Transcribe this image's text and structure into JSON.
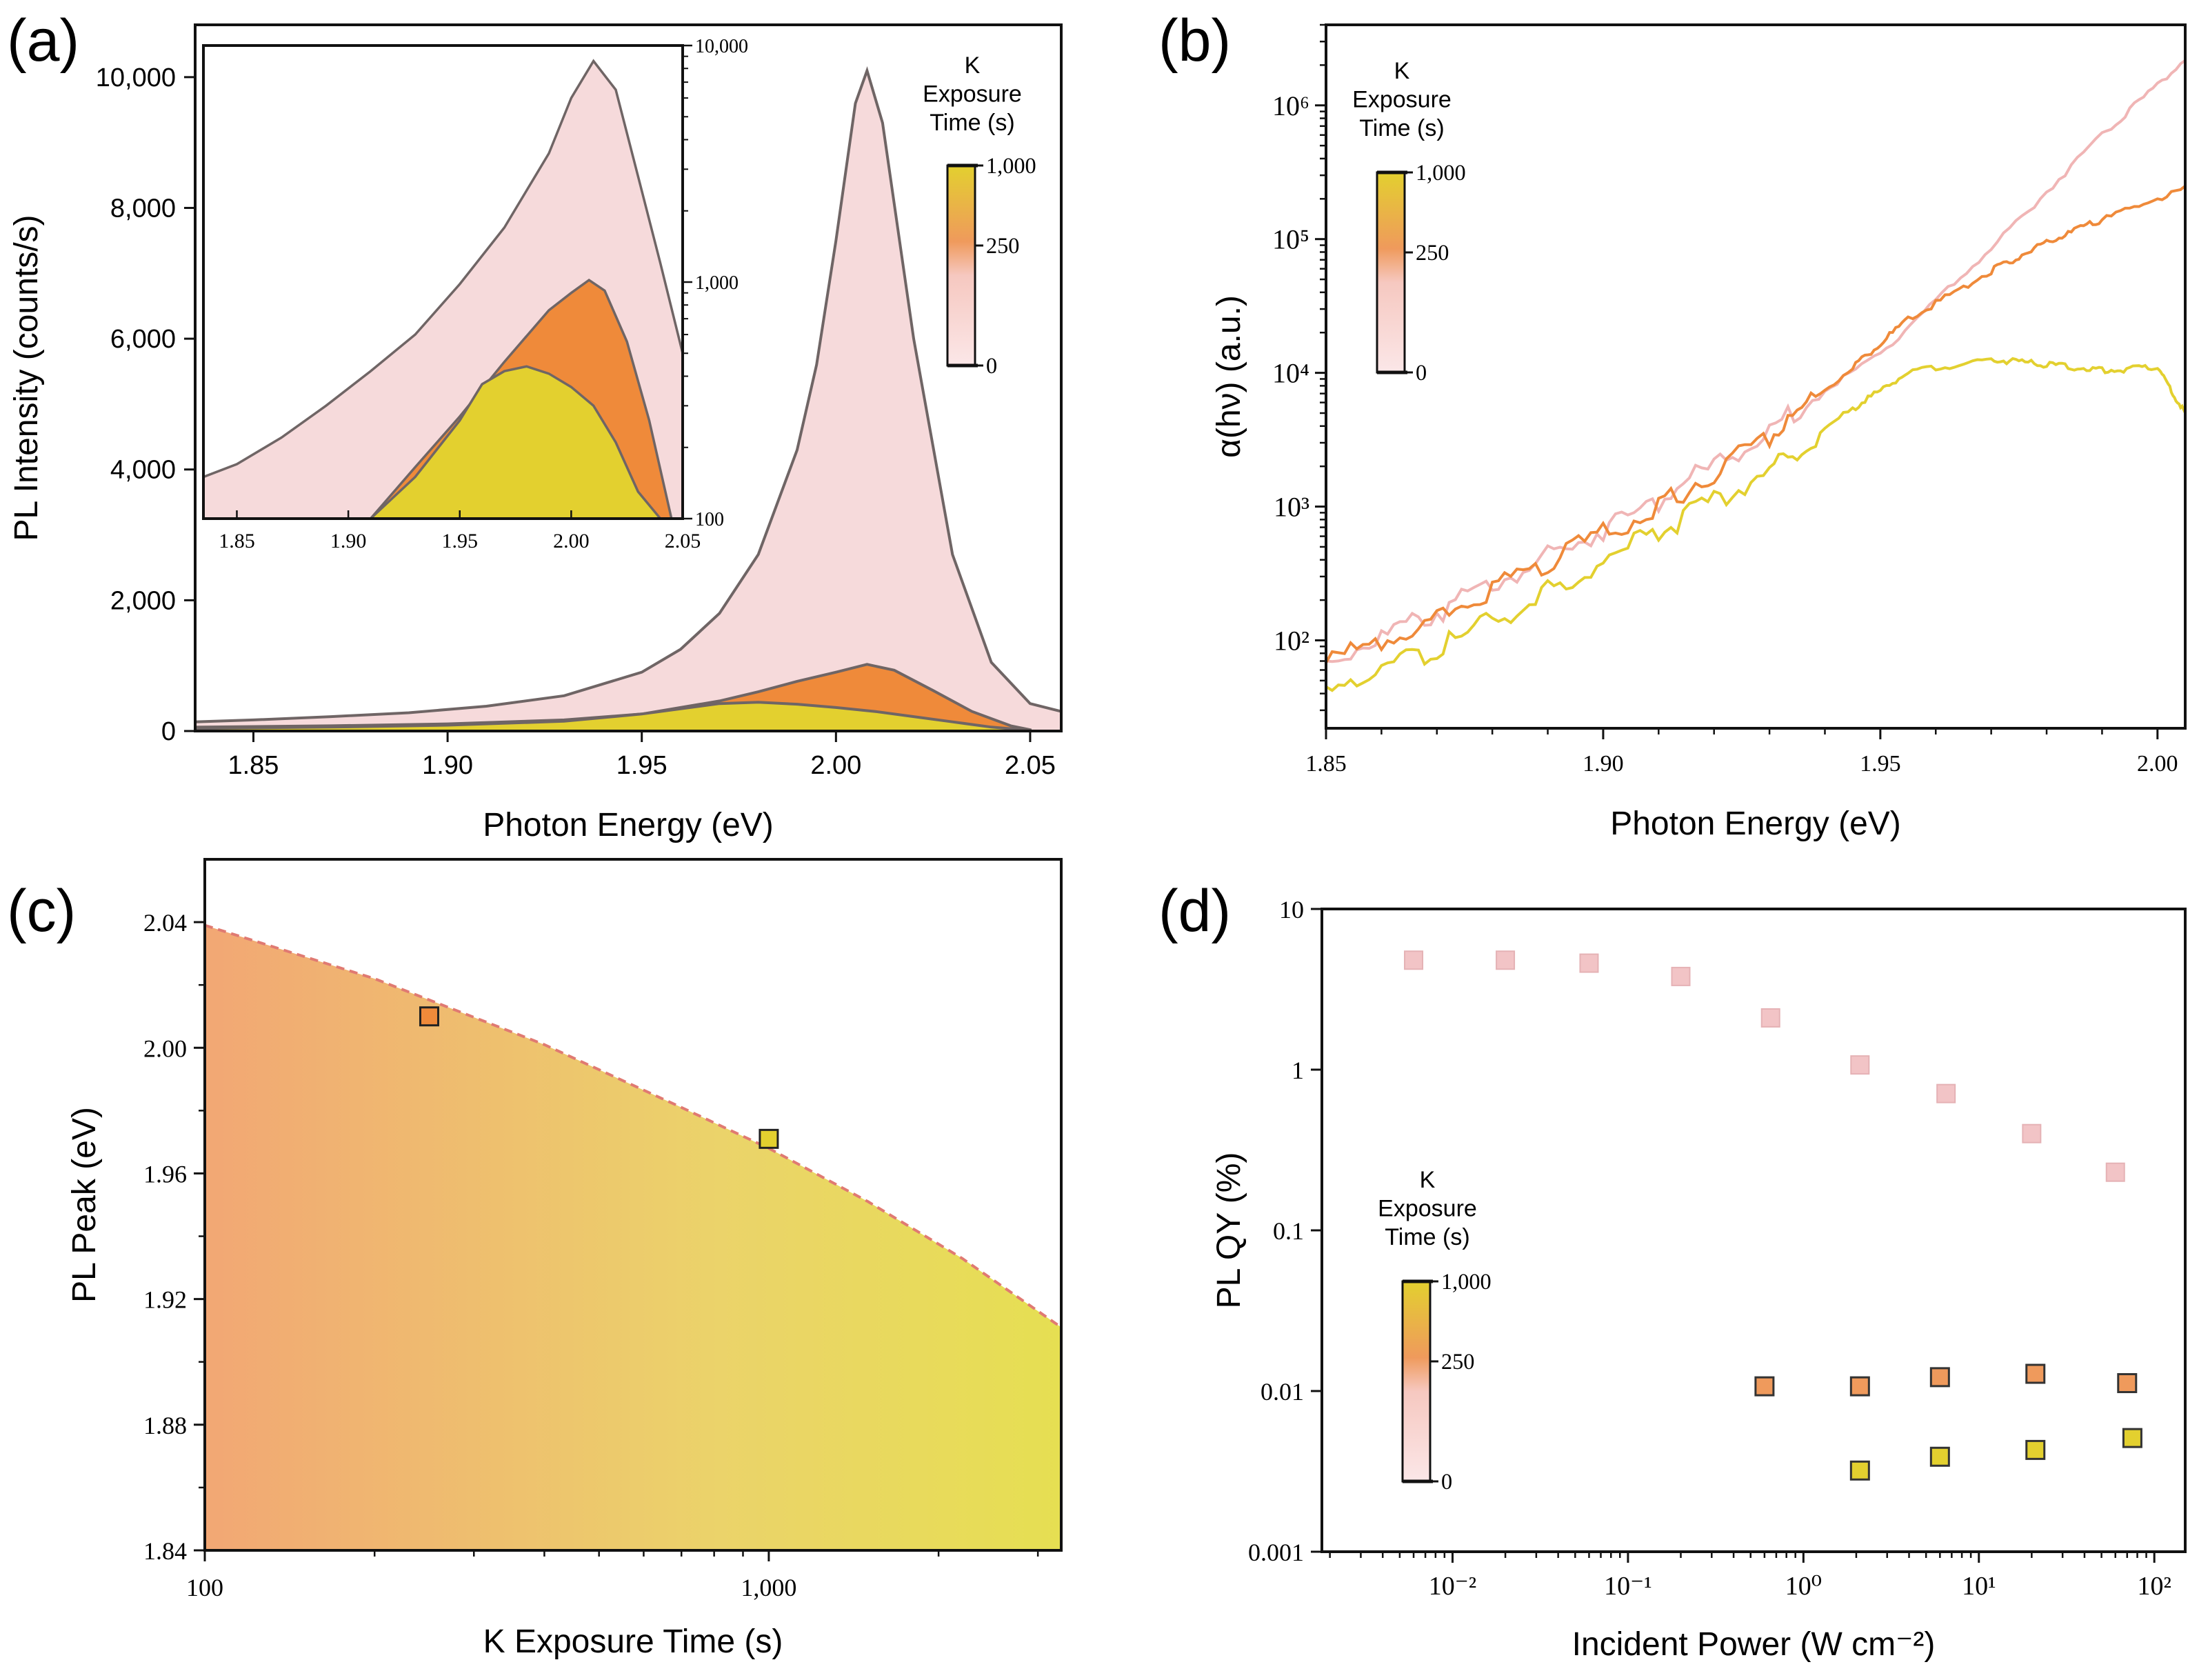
{
  "panels": {
    "a": {
      "letter": "(a)"
    },
    "b": {
      "letter": "(b)"
    },
    "c": {
      "letter": "(c)"
    },
    "d": {
      "letter": "(d)"
    }
  },
  "legend": {
    "title_line1": "K",
    "title_line2": "Exposure",
    "title_line3": "Time (s)",
    "tick_top": "1,000",
    "tick_mid": "250",
    "tick_bottom": "0",
    "colors": {
      "pink": "#f4d2d4",
      "orange": "#ef8a3a",
      "yellow": "#e3d02f"
    }
  },
  "chart_data": [
    {
      "id": "a-main",
      "type": "area",
      "xlabel": "Photon Energy (eV)",
      "ylabel": "PL Intensity (counts/s)",
      "xlim": [
        1.835,
        2.058
      ],
      "ylim": [
        0,
        10800
      ],
      "xticks": [
        1.85,
        1.9,
        1.95,
        2.0,
        2.05
      ],
      "xtick_labels": [
        "1.85",
        "1.90",
        "1.95",
        "2.00",
        "2.05"
      ],
      "yticks": [
        0,
        2000,
        4000,
        6000,
        8000,
        10000
      ],
      "ytick_labels": [
        "0",
        "2,000",
        "4,000",
        "6,000",
        "8,000",
        "10,000"
      ],
      "series": [
        {
          "name": "0 s",
          "color": "#f6dadb",
          "x": [
            1.835,
            1.85,
            1.87,
            1.89,
            1.91,
            1.93,
            1.95,
            1.96,
            1.97,
            1.98,
            1.99,
            1.995,
            2.0,
            2.005,
            2.008,
            2.012,
            2.02,
            2.03,
            2.04,
            2.05,
            2.058
          ],
          "y": [
            140,
            170,
            220,
            280,
            380,
            540,
            900,
            1250,
            1800,
            2700,
            4300,
            5600,
            7500,
            9600,
            10100,
            9300,
            6000,
            2700,
            1050,
            420,
            300
          ]
        },
        {
          "name": "250 s",
          "color": "#ef8a3a",
          "x": [
            1.835,
            1.87,
            1.9,
            1.93,
            1.95,
            1.97,
            1.98,
            1.99,
            2.0,
            2.008,
            2.015,
            2.025,
            2.035,
            2.045,
            2.05
          ],
          "y": [
            60,
            80,
            110,
            170,
            260,
            460,
            600,
            760,
            900,
            1020,
            930,
            620,
            300,
            80,
            20
          ]
        },
        {
          "name": "1,000 s",
          "color": "#e3d02f",
          "x": [
            1.835,
            1.87,
            1.9,
            1.93,
            1.95,
            1.97,
            1.98,
            1.99,
            2.0,
            2.01,
            2.02,
            2.03,
            2.04,
            2.05
          ],
          "y": [
            40,
            60,
            90,
            150,
            260,
            420,
            440,
            410,
            360,
            300,
            220,
            140,
            60,
            10
          ]
        }
      ]
    },
    {
      "id": "a-inset",
      "type": "area",
      "scale_y": "log",
      "xlim": [
        1.835,
        2.05
      ],
      "ylim": [
        100,
        10000
      ],
      "xticks": [
        1.85,
        1.9,
        1.95,
        2.0,
        2.05
      ],
      "xtick_labels": [
        "1.85",
        "1.90",
        "1.95",
        "2.00",
        "2.05"
      ],
      "yticks": [
        100,
        1000,
        10000
      ],
      "ytick_labels": [
        "100",
        "1,000",
        "10,000"
      ],
      "series": [
        {
          "name": "0 s",
          "color": "#f6dadb",
          "x": [
            1.835,
            1.85,
            1.87,
            1.89,
            1.91,
            1.93,
            1.95,
            1.97,
            1.99,
            2.0,
            2.01,
            2.02,
            2.03,
            2.04,
            2.05
          ],
          "y": [
            150,
            170,
            220,
            300,
            420,
            600,
            980,
            1700,
            3500,
            6000,
            8600,
            6500,
            2800,
            1200,
            500
          ]
        },
        {
          "name": "250 s",
          "color": "#ef8a3a",
          "x": [
            1.91,
            1.93,
            1.95,
            1.97,
            1.99,
            2.0,
            2.008,
            2.015,
            2.025,
            2.035,
            2.045
          ],
          "y": [
            100,
            165,
            270,
            460,
            760,
            900,
            1020,
            920,
            560,
            260,
            100
          ]
        },
        {
          "name": "1,000 s",
          "color": "#e3d02f",
          "x": [
            1.91,
            1.93,
            1.95,
            1.96,
            1.97,
            1.98,
            1.99,
            2.0,
            2.01,
            2.02,
            2.03,
            2.04
          ],
          "y": [
            100,
            150,
            260,
            370,
            420,
            440,
            410,
            360,
            300,
            210,
            130,
            100
          ]
        }
      ]
    },
    {
      "id": "b",
      "type": "line",
      "scale_y": "log",
      "xlabel": "Photon Energy (eV)",
      "ylabel": "α(hν) (a.u.)",
      "xlim": [
        1.85,
        2.005
      ],
      "ylim": [
        22,
        4000000
      ],
      "xticks": [
        1.85,
        1.9,
        1.95,
        2.0
      ],
      "xtick_labels": [
        "1.85",
        "1.90",
        "1.95",
        "2.00"
      ],
      "yticks": [
        100,
        1000,
        10000,
        100000,
        1000000
      ],
      "ytick_labels": [
        "10²",
        "10³",
        "10⁴",
        "10⁵",
        "10⁶"
      ],
      "series": [
        {
          "name": "0 s",
          "color": "#f0b5b5",
          "x": [
            1.85,
            1.87,
            1.89,
            1.91,
            1.93,
            1.95,
            1.97,
            1.99,
            2.005
          ],
          "y": [
            70,
            160,
            420,
            1100,
            3800,
            14000,
            85000,
            600000,
            2200000
          ]
        },
        {
          "name": "250 s",
          "color": "#ef8a3a",
          "x": [
            1.85,
            1.87,
            1.89,
            1.91,
            1.93,
            1.945,
            1.955,
            1.97,
            1.98,
            1.99,
            2.005
          ],
          "y": [
            68,
            150,
            380,
            1000,
            3400,
            11000,
            25000,
            58000,
            95000,
            140000,
            240000
          ]
        },
        {
          "name": "1,000 s",
          "color": "#e3d02f",
          "x": [
            1.85,
            1.87,
            1.89,
            1.91,
            1.93,
            1.945,
            1.955,
            1.97,
            1.98,
            1.99,
            2.0,
            2.005
          ],
          "y": [
            45,
            85,
            230,
            650,
            1900,
            5400,
            10000,
            12500,
            11500,
            10500,
            11000,
            5000
          ]
        }
      ]
    },
    {
      "id": "c",
      "type": "scatter",
      "scale_x": "log",
      "xlabel": "K Exposure Time (s)",
      "ylabel": "PL Peak (eV)",
      "xlim": [
        100,
        3300
      ],
      "ylim": [
        1.84,
        2.06
      ],
      "xticks": [
        100,
        1000
      ],
      "xtick_labels": [
        "100",
        "1,000"
      ],
      "yticks": [
        1.84,
        1.88,
        1.92,
        1.96,
        2.0,
        2.04
      ],
      "ytick_labels": [
        "1.84",
        "1.88",
        "1.92",
        "1.96",
        "2.00",
        "2.04"
      ],
      "fit_curve": {
        "x": [
          100,
          200,
          400,
          700,
          1000,
          1500,
          2200,
          3300
        ],
        "y": [
          2.039,
          2.022,
          2.001,
          1.981,
          1.968,
          1.951,
          1.933,
          1.911
        ]
      },
      "points": [
        {
          "x": 250,
          "y": 2.01,
          "color": "#ef8a3a"
        },
        {
          "x": 1000,
          "y": 1.971,
          "color": "#e3d02f"
        }
      ]
    },
    {
      "id": "d",
      "type": "scatter",
      "scale_x": "log",
      "scale_y": "log",
      "xlabel": "Incident Power (W cm⁻²)",
      "ylabel": "PL QY (%)",
      "xlim": [
        0.0018,
        150
      ],
      "ylim": [
        0.001,
        10
      ],
      "xticks": [
        0.01,
        0.1,
        1,
        10,
        100
      ],
      "xtick_labels": [
        "10⁻²",
        "10⁻¹",
        "10⁰",
        "10¹",
        "10²"
      ],
      "yticks": [
        0.001,
        0.01,
        0.1,
        1,
        10
      ],
      "ytick_labels": [
        "0.001",
        "0.01",
        "0.1",
        "1",
        "10"
      ],
      "series": [
        {
          "name": "0 s",
          "color": "#f2c4c6",
          "x": [
            0.006,
            0.02,
            0.06,
            0.2,
            0.65,
            2.1,
            6.5,
            20,
            60
          ],
          "y": [
            4.8,
            4.8,
            4.6,
            3.8,
            2.1,
            1.07,
            0.71,
            0.4,
            0.23
          ]
        },
        {
          "name": "250 s",
          "color": "#ef9a5c",
          "x": [
            0.6,
            2.1,
            6.0,
            21,
            70
          ],
          "y": [
            0.0107,
            0.0107,
            0.0122,
            0.0128,
            0.0112
          ]
        },
        {
          "name": "1,000 s",
          "color": "#e3d02f",
          "x": [
            2.1,
            6.0,
            21,
            75
          ],
          "y": [
            0.0032,
            0.0039,
            0.0043,
            0.0051
          ]
        }
      ]
    }
  ]
}
